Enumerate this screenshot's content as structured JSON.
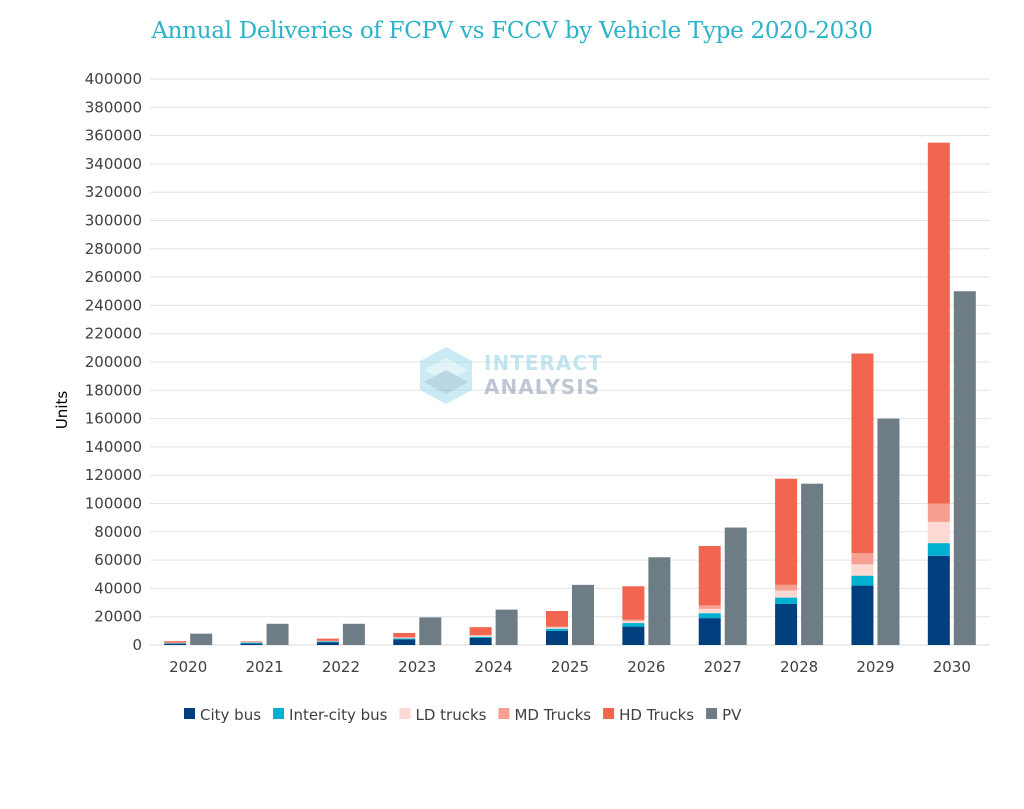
{
  "chart_data": {
    "type": "bar",
    "stacked": true,
    "title": "Annual Deliveries of FCPV vs FCCV by Vehicle Type 2020-2030",
    "xlabel": "",
    "ylabel": "Units",
    "ylim": [
      0,
      400000
    ],
    "yticks": [
      0,
      20000,
      40000,
      60000,
      80000,
      100000,
      120000,
      140000,
      160000,
      180000,
      200000,
      220000,
      240000,
      260000,
      280000,
      300000,
      320000,
      340000,
      360000,
      380000,
      400000
    ],
    "grid": true,
    "legend_position": "bottom",
    "categories": [
      "2020",
      "2021",
      "2022",
      "2023",
      "2024",
      "2025",
      "2026",
      "2027",
      "2028",
      "2029",
      "2030"
    ],
    "stacks": [
      {
        "name": "FCCV",
        "series": [
          {
            "name": "City bus",
            "color": "#003f7d",
            "values": [
              1000,
              1000,
              2000,
              4000,
              5000,
              10000,
              13000,
              19000,
              29000,
              42000,
              63000
            ]
          },
          {
            "name": "Inter-city bus",
            "color": "#00b0d0",
            "values": [
              300,
              700,
              500,
              600,
              800,
              1500,
              2500,
              3500,
              4500,
              7000,
              9000
            ]
          },
          {
            "name": "LD trucks",
            "color": "#fcd9d3",
            "values": [
              200,
              200,
              300,
              500,
              800,
              1000,
              1500,
              3000,
              5000,
              8000,
              15000
            ]
          },
          {
            "name": "MD Trucks",
            "color": "#f6a092",
            "values": [
              200,
              200,
              200,
              400,
              500,
              500,
              1000,
              2500,
              4000,
              8000,
              13000
            ]
          },
          {
            "name": "HD Trucks",
            "color": "#f26550",
            "values": [
              1000,
              400,
              1500,
              3000,
              5500,
              11000,
              23500,
              42000,
              75000,
              141000,
              255000
            ]
          }
        ]
      },
      {
        "name": "FCPV",
        "series": [
          {
            "name": "PV",
            "color": "#6e7c85",
            "values": [
              8000,
              15000,
              15000,
              19500,
              25000,
              42500,
              62000,
              83000,
              114000,
              160000,
              250000
            ]
          }
        ]
      }
    ],
    "legend": [
      "City bus",
      "Inter-city bus",
      "LD trucks",
      "MD Trucks",
      "HD Trucks",
      "PV"
    ],
    "watermark": {
      "line1": "INTERACT",
      "line2": "ANALYSIS"
    }
  }
}
